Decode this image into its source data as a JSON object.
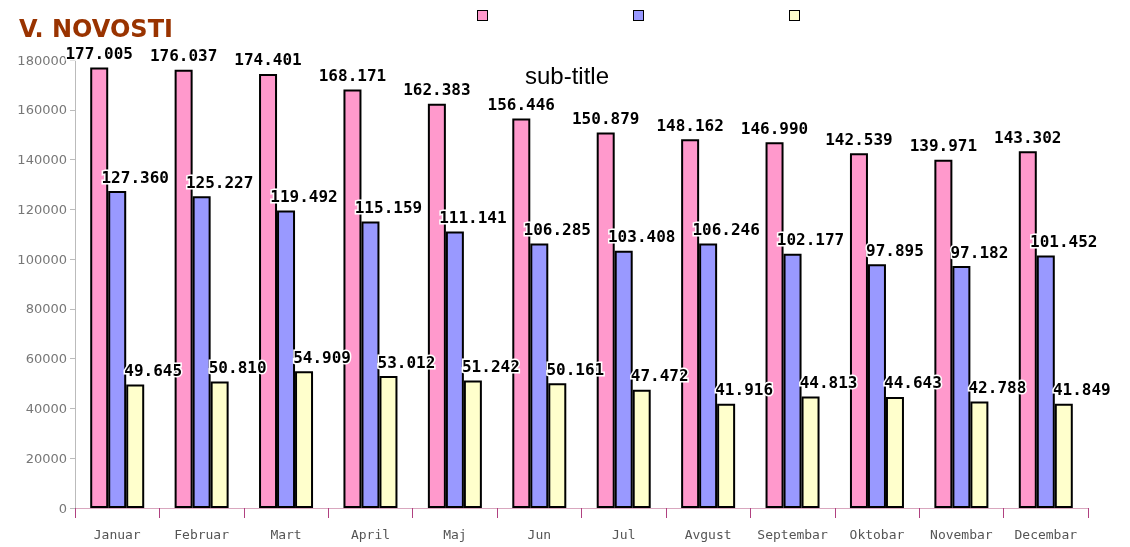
{
  "chart_data": {
    "type": "bar",
    "title": "V. NOVOSTI",
    "subtitle": "sub-title",
    "categories": [
      "Januar",
      "Februar",
      "Mart",
      "April",
      "Maj",
      "Jun",
      "Jul",
      "Avgust",
      "Septembar",
      "Oktobar",
      "Novembar",
      "Decembar"
    ],
    "series": [
      {
        "color": "#ff99cc",
        "values": [
          177005,
          176037,
          174401,
          168171,
          162383,
          156446,
          150879,
          148162,
          146990,
          142539,
          139971,
          143302
        ],
        "value_labels": [
          "177.005",
          "176.037",
          "174.401",
          "168.171",
          "162.383",
          "156.446",
          "150.879",
          "148.162",
          "146.990",
          "142.539",
          "139.971",
          "143.302"
        ]
      },
      {
        "color": "#9999ff",
        "values": [
          127360,
          125227,
          119492,
          115159,
          111141,
          106285,
          103408,
          106246,
          102177,
          97895,
          97182,
          101452
        ],
        "value_labels": [
          "127.360",
          "125.227",
          "119.492",
          "115.159",
          "111.141",
          "106.285",
          "103.408",
          "106.246",
          "102.177",
          "97.895",
          "97.182",
          "101.452"
        ]
      },
      {
        "color": "#ffffcc",
        "values": [
          49645,
          50810,
          54909,
          53012,
          51242,
          50161,
          47472,
          41916,
          44813,
          44643,
          42788,
          41849
        ],
        "value_labels": [
          "49.645",
          "50.810",
          "54.909",
          "53.012",
          "51.242",
          "50.161",
          "47.472",
          "41.916",
          "44.813",
          "44.643",
          "42.788",
          "41.849"
        ]
      }
    ],
    "ylim": [
      0,
      180000
    ],
    "yticks": [
      0,
      20000,
      40000,
      60000,
      80000,
      100000,
      120000,
      140000,
      160000,
      180000
    ],
    "grid": false
  }
}
